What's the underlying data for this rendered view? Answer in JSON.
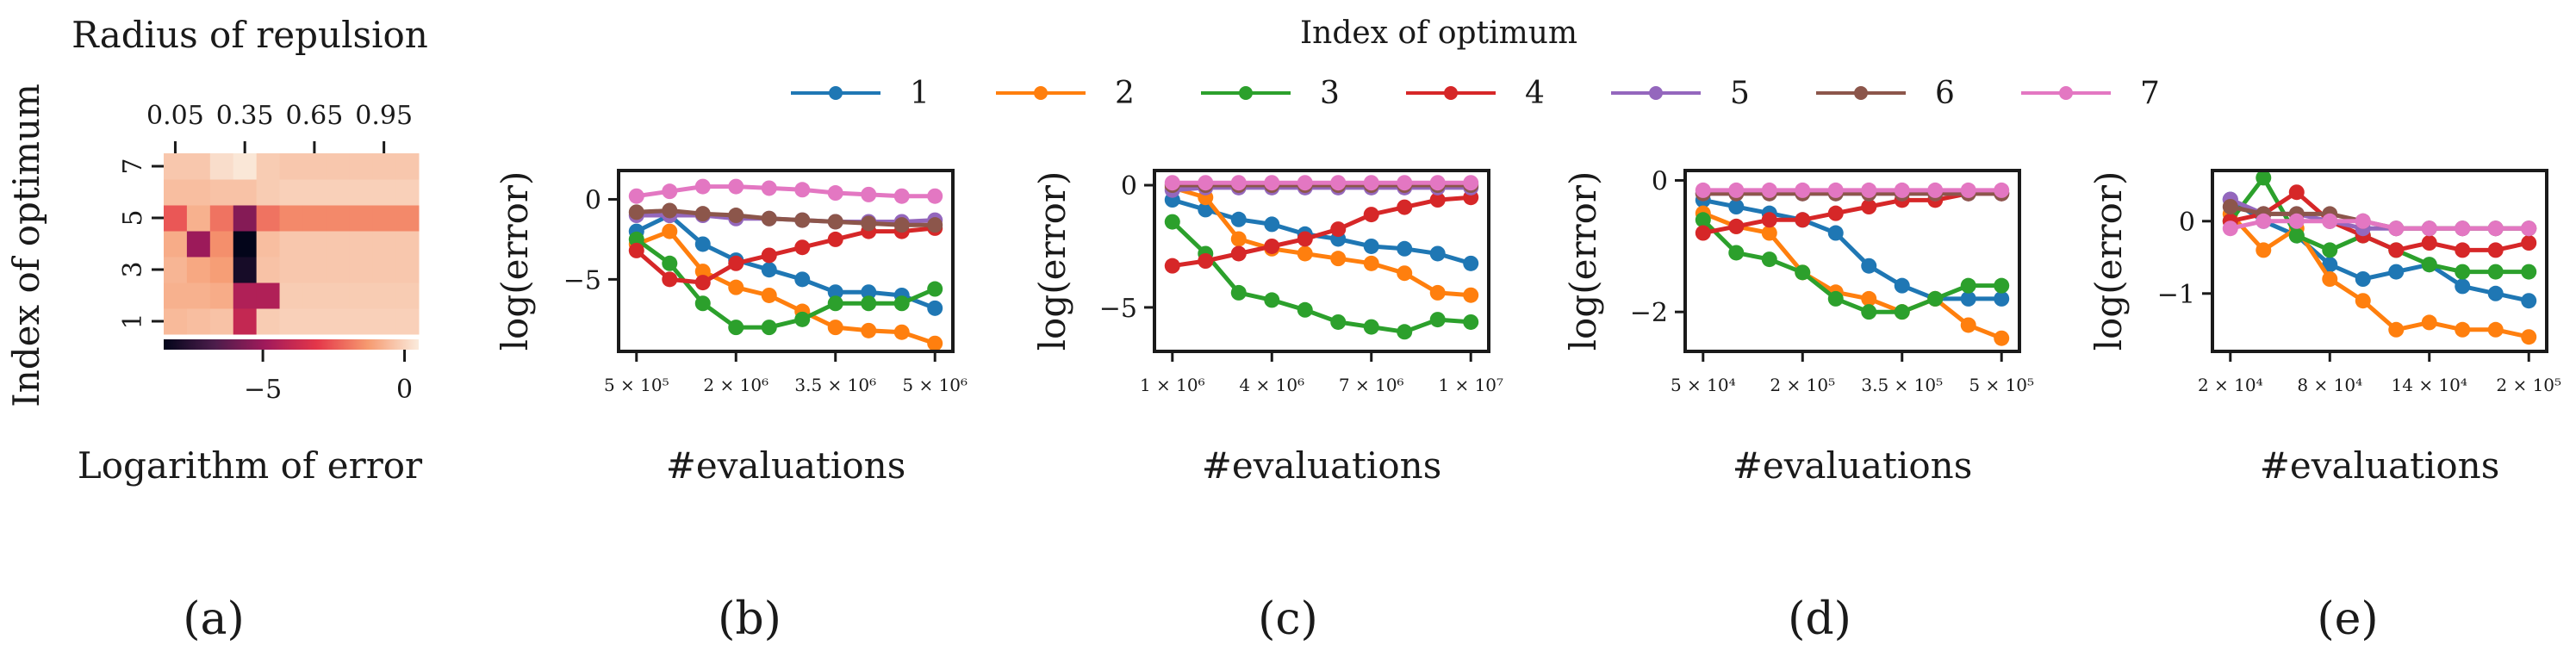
{
  "legend": {
    "title": "Index of optimum",
    "labels": [
      "1",
      "2",
      "3",
      "4",
      "5",
      "6",
      "7"
    ]
  },
  "colors": [
    "#1f77b4",
    "#ff7f0e",
    "#2ca02c",
    "#d62728",
    "#9467bd",
    "#8c564b",
    "#e377c2"
  ],
  "panel_labels": [
    "(a)",
    "(b)",
    "(c)",
    "(d)",
    "(e)"
  ],
  "chart_data": [
    {
      "type": "heatmap",
      "title": "Radius of repulsion",
      "ylabel": "Index of optimum",
      "colorbar_label": "Logarithm of error",
      "x_tick_labels": [
        "0.05",
        "0.35",
        "0.65",
        "0.95"
      ],
      "y_tick_labels": [
        "1",
        "3",
        "5",
        "7"
      ],
      "colorbar_tick_labels": [
        "−5",
        "0"
      ],
      "color_range": [
        -8.5,
        0.5
      ],
      "colormap": "rocket",
      "rows": [
        "1",
        "2",
        "3",
        "4",
        "5",
        "6",
        "7"
      ],
      "columns": [
        "0.05",
        "0.15",
        "0.25",
        "0.35",
        "0.45",
        "0.55",
        "0.65",
        "0.75",
        "0.85",
        "0.95",
        "1.05"
      ],
      "values": [
        [
          -0.6,
          -0.5,
          -0.4,
          -4.0,
          -0.2,
          -0.1,
          -0.1,
          -0.1,
          -0.1,
          -0.1,
          -0.1
        ],
        [
          -0.8,
          -0.8,
          -0.9,
          -4.5,
          -4.5,
          -0.2,
          -0.2,
          -0.2,
          -0.2,
          -0.2,
          -0.2
        ],
        [
          -0.7,
          -1.0,
          -1.2,
          -8.0,
          -0.4,
          -0.3,
          -0.3,
          -0.3,
          -0.3,
          -0.3,
          -0.3
        ],
        [
          -0.9,
          -5.0,
          -1.5,
          -8.5,
          -0.5,
          -0.3,
          -0.3,
          -0.3,
          -0.3,
          -0.3,
          -0.3
        ],
        [
          -2.5,
          -0.8,
          -2.0,
          -5.5,
          -2.0,
          -1.6,
          -1.6,
          -1.6,
          -1.6,
          -1.6,
          -1.6
        ],
        [
          -0.5,
          -0.5,
          -0.4,
          -0.4,
          -0.2,
          -0.1,
          -0.1,
          -0.1,
          -0.1,
          -0.1,
          -0.1
        ],
        [
          -0.3,
          -0.3,
          0.2,
          0.4,
          -0.2,
          -0.3,
          -0.3,
          -0.3,
          -0.3,
          -0.3,
          -0.3
        ]
      ]
    },
    {
      "type": "line",
      "xlabel": "#evaluations",
      "ylabel": "log(error)",
      "x": [
        500000,
        1000000,
        1500000,
        2000000,
        2500000,
        3000000,
        3500000,
        4000000,
        4500000,
        5000000
      ],
      "x_tick_labels": [
        "5 × 10⁵",
        "2 × 10⁶",
        "3.5 × 10⁶",
        "5 × 10⁶"
      ],
      "x_ticks": [
        500000,
        2000000,
        3500000,
        5000000
      ],
      "y_ticks": [
        0,
        -5
      ],
      "y_tick_labels": [
        "0",
        "−5"
      ],
      "ylim": [
        -9.5,
        1.8
      ],
      "series": [
        {
          "name": "1",
          "values": [
            -2.0,
            -1.0,
            -2.8,
            -3.8,
            -4.4,
            -5.0,
            -5.8,
            -5.8,
            -6.0,
            -6.8
          ]
        },
        {
          "name": "2",
          "values": [
            -2.8,
            -2.0,
            -4.5,
            -5.5,
            -6.0,
            -7.0,
            -8.0,
            -8.2,
            -8.3,
            -9.0
          ]
        },
        {
          "name": "3",
          "values": [
            -2.5,
            -4.0,
            -6.5,
            -8.0,
            -8.0,
            -7.5,
            -6.5,
            -6.5,
            -6.5,
            -5.6
          ]
        },
        {
          "name": "4",
          "values": [
            -3.2,
            -5.0,
            -5.2,
            -4.0,
            -3.5,
            -3.0,
            -2.5,
            -2.0,
            -2.0,
            -1.8
          ]
        },
        {
          "name": "5",
          "values": [
            -1.0,
            -1.0,
            -1.0,
            -1.2,
            -1.2,
            -1.3,
            -1.4,
            -1.4,
            -1.4,
            -1.3
          ]
        },
        {
          "name": "6",
          "values": [
            -0.8,
            -0.7,
            -0.9,
            -1.0,
            -1.2,
            -1.3,
            -1.4,
            -1.5,
            -1.6,
            -1.6
          ]
        },
        {
          "name": "7",
          "values": [
            0.2,
            0.5,
            0.8,
            0.8,
            0.7,
            0.6,
            0.4,
            0.3,
            0.2,
            0.2
          ]
        }
      ]
    },
    {
      "type": "line",
      "xlabel": "#evaluations",
      "ylabel": "log(error)",
      "x": [
        1000000,
        2000000,
        3000000,
        4000000,
        5000000,
        6000000,
        7000000,
        8000000,
        9000000,
        10000000
      ],
      "x_tick_labels": [
        "1 × 10⁶",
        "4 × 10⁶",
        "7 × 10⁶",
        "1 × 10⁷"
      ],
      "x_ticks": [
        1000000,
        4000000,
        7000000,
        10000000
      ],
      "y_ticks": [
        0,
        -5
      ],
      "y_tick_labels": [
        "0",
        "−5"
      ],
      "ylim": [
        -6.8,
        0.6
      ],
      "series": [
        {
          "name": "1",
          "values": [
            -0.6,
            -1.0,
            -1.4,
            -1.6,
            -2.0,
            -2.2,
            -2.5,
            -2.6,
            -2.8,
            -3.2
          ]
        },
        {
          "name": "2",
          "values": [
            -0.1,
            -0.5,
            -2.2,
            -2.6,
            -2.8,
            -3.0,
            -3.2,
            -3.6,
            -4.4,
            -4.5
          ]
        },
        {
          "name": "3",
          "values": [
            -1.5,
            -2.8,
            -4.4,
            -4.7,
            -5.1,
            -5.6,
            -5.8,
            -6.0,
            -5.5,
            -5.6
          ]
        },
        {
          "name": "4",
          "values": [
            -3.3,
            -3.1,
            -2.8,
            -2.5,
            -2.2,
            -1.8,
            -1.2,
            -0.9,
            -0.6,
            -0.5
          ]
        },
        {
          "name": "5",
          "values": [
            -0.2,
            -0.1,
            -0.1,
            -0.1,
            -0.1,
            -0.1,
            -0.1,
            -0.1,
            -0.1,
            -0.1
          ]
        },
        {
          "name": "6",
          "values": [
            0.0,
            0.0,
            0.0,
            0.0,
            0.0,
            0.0,
            0.0,
            0.0,
            0.0,
            0.0
          ]
        },
        {
          "name": "7",
          "values": [
            0.1,
            0.1,
            0.1,
            0.1,
            0.1,
            0.1,
            0.1,
            0.1,
            0.1,
            0.1
          ]
        }
      ]
    },
    {
      "type": "line",
      "xlabel": "#evaluations",
      "ylabel": "log(error)",
      "x": [
        50000,
        100000,
        150000,
        200000,
        250000,
        300000,
        350000,
        400000,
        450000,
        500000
      ],
      "x_tick_labels": [
        "5 × 10⁴",
        "2 × 10⁵",
        "3.5 × 10⁵",
        "5 × 10⁵"
      ],
      "x_ticks": [
        50000,
        200000,
        350000,
        500000
      ],
      "y_ticks": [
        0,
        -2
      ],
      "y_tick_labels": [
        "0",
        "−2"
      ],
      "ylim": [
        -2.6,
        0.15
      ],
      "series": [
        {
          "name": "1",
          "values": [
            -0.3,
            -0.4,
            -0.5,
            -0.6,
            -0.8,
            -1.3,
            -1.6,
            -1.8,
            -1.8,
            -1.8
          ]
        },
        {
          "name": "2",
          "values": [
            -0.5,
            -0.7,
            -0.8,
            -1.4,
            -1.7,
            -1.8,
            -2.0,
            -1.8,
            -2.2,
            -2.4
          ]
        },
        {
          "name": "3",
          "values": [
            -0.6,
            -1.1,
            -1.2,
            -1.4,
            -1.8,
            -2.0,
            -2.0,
            -1.8,
            -1.6,
            -1.6
          ]
        },
        {
          "name": "4",
          "values": [
            -0.8,
            -0.7,
            -0.6,
            -0.6,
            -0.5,
            -0.4,
            -0.3,
            -0.3,
            -0.2,
            -0.2
          ]
        },
        {
          "name": "5",
          "values": [
            -0.2,
            -0.2,
            -0.2,
            -0.2,
            -0.2,
            -0.2,
            -0.2,
            -0.2,
            -0.2,
            -0.2
          ]
        },
        {
          "name": "6",
          "values": [
            -0.2,
            -0.2,
            -0.2,
            -0.2,
            -0.2,
            -0.2,
            -0.2,
            -0.2,
            -0.2,
            -0.2
          ]
        },
        {
          "name": "7",
          "values": [
            -0.15,
            -0.15,
            -0.15,
            -0.15,
            -0.15,
            -0.15,
            -0.15,
            -0.15,
            -0.15,
            -0.15
          ]
        }
      ]
    },
    {
      "type": "line",
      "xlabel": "#evaluations",
      "ylabel": "log(error)",
      "x": [
        20000,
        40000,
        60000,
        80000,
        100000,
        120000,
        140000,
        160000,
        180000,
        200000
      ],
      "x_tick_labels": [
        "2 × 10⁴",
        "8 × 10⁴",
        "14 × 10⁴",
        "2 × 10⁵"
      ],
      "x_ticks": [
        20000,
        80000,
        140000,
        200000
      ],
      "y_ticks": [
        0,
        -1
      ],
      "y_tick_labels": [
        "0",
        "−1"
      ],
      "ylim": [
        -1.8,
        0.7
      ],
      "series": [
        {
          "name": "1",
          "values": [
            0.3,
            0.0,
            -0.2,
            -0.6,
            -0.8,
            -0.7,
            -0.6,
            -0.9,
            -1.0,
            -1.1
          ]
        },
        {
          "name": "2",
          "values": [
            0.1,
            -0.4,
            -0.1,
            -0.8,
            -1.1,
            -1.5,
            -1.4,
            -1.5,
            -1.5,
            -1.6
          ]
        },
        {
          "name": "3",
          "values": [
            0.0,
            0.6,
            -0.2,
            -0.4,
            -0.2,
            -0.4,
            -0.6,
            -0.7,
            -0.7,
            -0.7
          ]
        },
        {
          "name": "4",
          "values": [
            0.0,
            0.1,
            0.4,
            0.0,
            -0.2,
            -0.4,
            -0.3,
            -0.4,
            -0.4,
            -0.3
          ]
        },
        {
          "name": "5",
          "values": [
            0.3,
            0.1,
            0.1,
            0.0,
            -0.1,
            -0.1,
            -0.1,
            -0.1,
            -0.1,
            -0.1
          ]
        },
        {
          "name": "6",
          "values": [
            0.2,
            0.1,
            0.1,
            0.1,
            0.0,
            -0.1,
            -0.1,
            -0.1,
            -0.1,
            -0.1
          ]
        },
        {
          "name": "7",
          "values": [
            -0.1,
            0.0,
            0.0,
            0.0,
            0.0,
            -0.1,
            -0.1,
            -0.1,
            -0.1,
            -0.1
          ]
        }
      ]
    }
  ]
}
